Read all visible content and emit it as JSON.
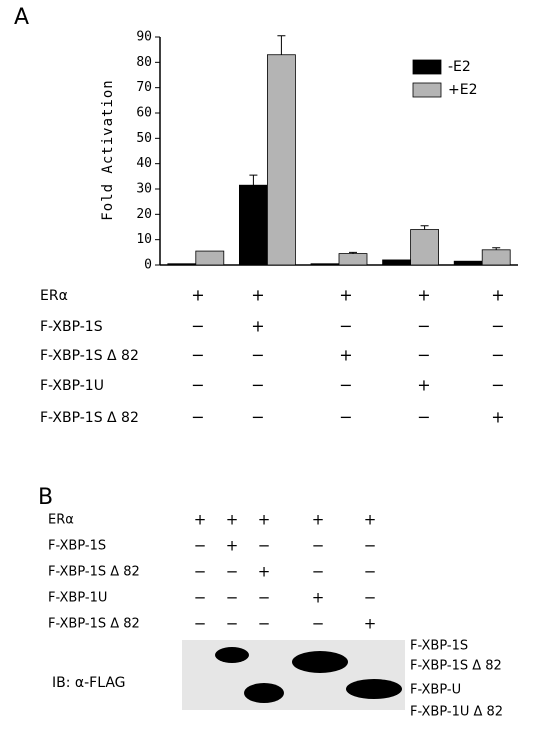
{
  "chart_data": {
    "type": "bar",
    "panel_label": "A",
    "y_label": "Fold Activation",
    "categories": [
      null,
      null,
      null,
      null,
      null
    ],
    "series": [
      {
        "name": "-E2",
        "color": "#000000",
        "values": [
          0.5,
          31.5,
          0.5,
          2,
          1.5
        ],
        "errors": [
          null,
          4,
          null,
          null,
          null
        ]
      },
      {
        "name": "+E2",
        "color": "#b4b4b4",
        "values": [
          5.5,
          83,
          4.5,
          14,
          6
        ],
        "errors": [
          null,
          7.5,
          0.5,
          1.5,
          0.8
        ]
      }
    ],
    "ylim": [
      0,
      90
    ],
    "yticks": [
      0,
      10,
      20,
      30,
      40,
      50,
      60,
      70,
      80,
      90
    ],
    "grid": false,
    "legend": "top-right"
  },
  "panel_a_conditions": [
    {
      "label": "ERα",
      "marks": [
        "+",
        "+",
        "+",
        "+",
        "+"
      ]
    },
    {
      "label": "F-XBP-1S",
      "marks": [
        "−",
        "+",
        "−",
        "−",
        "−"
      ]
    },
    {
      "label": "F-XBP-1S Δ 82",
      "marks": [
        "−",
        "−",
        "+",
        "−",
        "−"
      ]
    },
    {
      "label": "F-XBP-1U",
      "marks": [
        "−",
        "−",
        "−",
        "+",
        "−"
      ]
    },
    {
      "label": "F-XBP-1S Δ 82",
      "marks": [
        "−",
        "−",
        "−",
        "−",
        "+"
      ]
    }
  ],
  "panel_b": {
    "label": "B",
    "conditions": [
      {
        "label": "ERα",
        "marks": [
          "+",
          "+",
          "+",
          "+",
          "+"
        ]
      },
      {
        "label": "F-XBP-1S",
        "marks": [
          "−",
          "+",
          "−",
          "−",
          "−"
        ]
      },
      {
        "label": "F-XBP-1S Δ 82",
        "marks": [
          "−",
          "−",
          "+",
          "−",
          "−"
        ]
      },
      {
        "label": "F-XBP-1U",
        "marks": [
          "−",
          "−",
          "−",
          "+",
          "−"
        ]
      },
      {
        "label": "F-XBP-1S Δ 82",
        "marks": [
          "−",
          "−",
          "−",
          "−",
          "+"
        ]
      }
    ],
    "antibody": "IB: α-FLAG",
    "band_labels": [
      "F-XBP-1S",
      "F-XBP-1S Δ 82",
      "F-XBP-U",
      "F-XBP-1U Δ 82"
    ]
  }
}
